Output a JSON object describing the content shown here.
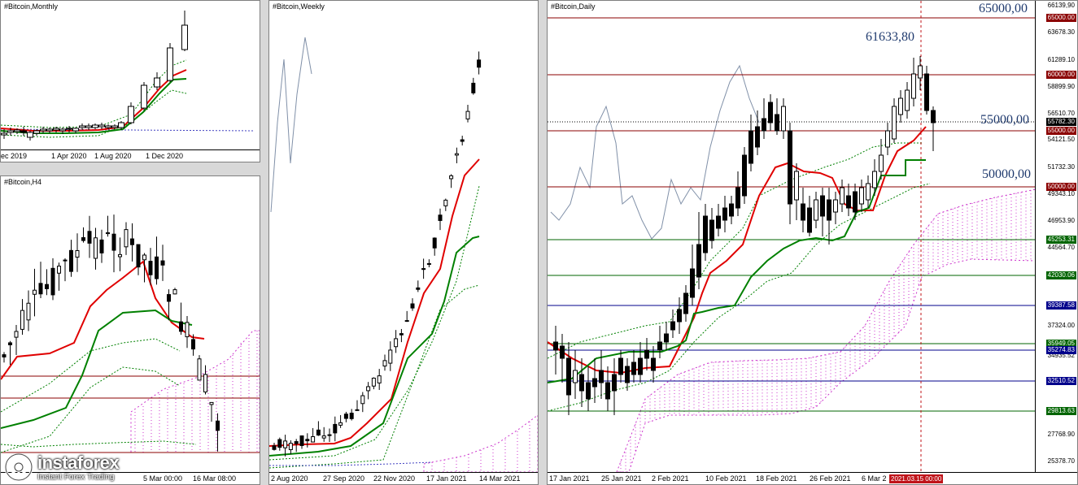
{
  "monthly": {
    "title": "#Bitcoin,Monthly",
    "x_labels": [
      "ec 2019",
      "1 Apr 2020",
      "1 Aug 2020",
      "1 Dec 2020"
    ]
  },
  "h4": {
    "title": "#Bitcoin,H4",
    "x_labels": [
      "5 Mar 00:00",
      "16 Mar 08:00"
    ]
  },
  "weekly": {
    "title": "#Bitcoin,Weekly",
    "x_labels": [
      "2 Aug 2020",
      "27 Sep 2020",
      "22 Nov 2020",
      "17 Jan 2021",
      "14 Mar 2021"
    ]
  },
  "daily": {
    "title": "#Bitcoin,Daily",
    "x_labels": [
      "17 Jan 2021",
      "25 Jan 2021",
      "2 Feb 2021",
      "10 Feb 2021",
      "18 Feb 2021",
      "26 Feb 2021",
      "6 Mar 2"
    ],
    "date_flag": "2021.03.15 00:00",
    "y_labels": [
      "66139,90",
      "63678.30",
      "61289.10",
      "58899.90",
      "56510.70",
      "54121.50",
      "51732.30",
      "49343.10",
      "46953.90",
      "44564.70",
      "37324.00",
      "34935.52",
      "27768.90",
      "25378.70"
    ],
    "level_badges": [
      {
        "value": "65000.00",
        "color": "#8b0000"
      },
      {
        "value": "60000.00",
        "color": "#8b0000"
      },
      {
        "value": "55782.30",
        "color": "#000000"
      },
      {
        "value": "55000.00",
        "color": "#8b0000"
      },
      {
        "value": "50000.00",
        "color": "#8b0000"
      },
      {
        "value": "45253.31",
        "color": "#006400"
      },
      {
        "value": "42030.06",
        "color": "#006400"
      },
      {
        "value": "39387.58",
        "color": "#00008b"
      },
      {
        "value": "35949.05",
        "color": "#006400"
      },
      {
        "value": "35274.83",
        "color": "#00008b"
      },
      {
        "value": "32510.52",
        "color": "#00008b"
      },
      {
        "value": "29813.63",
        "color": "#006400"
      }
    ],
    "annotations": [
      "65000,00",
      "61633,80",
      "55000,00",
      "50000,00"
    ]
  },
  "logo": {
    "name": "instaforex",
    "tagline": "Instant Forex Trading"
  },
  "colors": {
    "tenkan": "#e00000",
    "kijun": "#008000",
    "cloud": "#cc33cc",
    "resistance": "#8b0000",
    "support_green": "#006400",
    "support_blue": "#00008b"
  }
}
